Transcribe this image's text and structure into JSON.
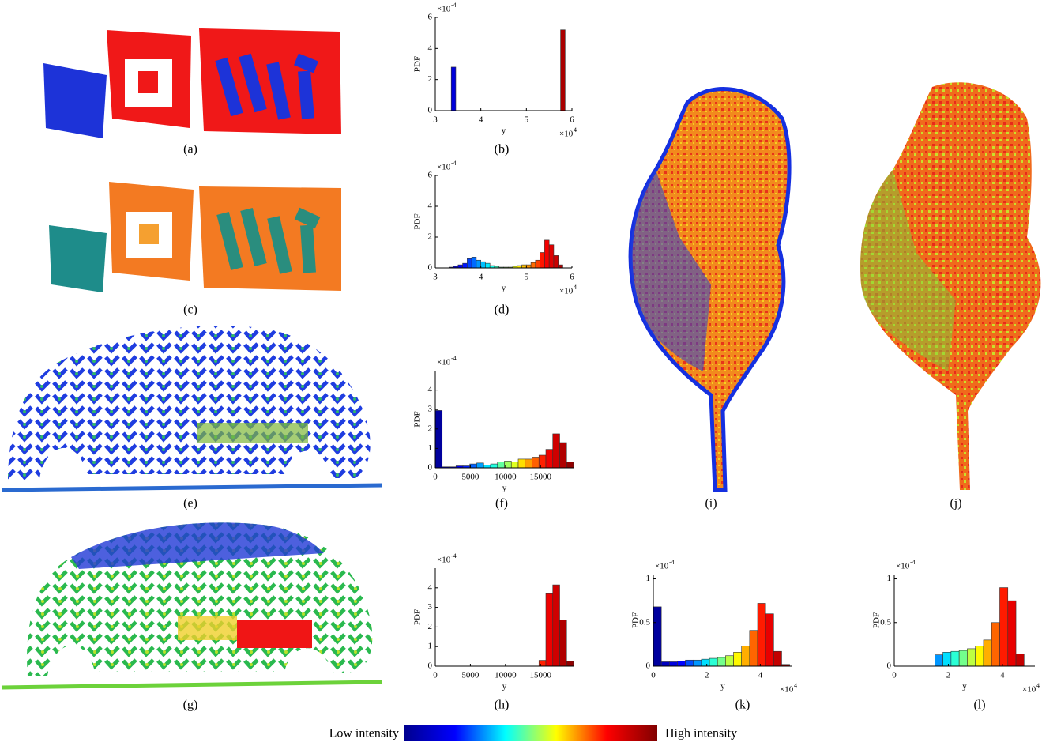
{
  "panels": [
    "(a)",
    "(c)",
    "(e)",
    "(g)",
    "(i)",
    "(j)"
  ],
  "colormap": [
    "#00008f",
    "#0000ff",
    "#00ffff",
    "#ffff00",
    "#ff0000",
    "#800000"
  ],
  "colorbar": {
    "low": "Low intensity",
    "high": "High intensity"
  },
  "chart_data": [
    {
      "type": "histogram",
      "caption": "(b)",
      "ylabel": "PDF",
      "xlabel": "y",
      "y_scale": {
        "base": "×10",
        "exponent": "-4"
      },
      "x_scale": {
        "base": "×10",
        "exponent": "4"
      },
      "xlim": [
        3,
        6
      ],
      "xticks": [
        3,
        4,
        5,
        6
      ],
      "ylim": [
        0,
        6
      ],
      "yticks": [
        0,
        2,
        4,
        6
      ],
      "bins": [
        3.35,
        3.45,
        3.55,
        3.65,
        3.75,
        3.85,
        3.95,
        4.05,
        4.15,
        4.25,
        4.35,
        4.45,
        4.55,
        4.65,
        4.75,
        4.85,
        4.95,
        5.05,
        5.15,
        5.25,
        5.35,
        5.45,
        5.55,
        5.65,
        5.75,
        5.85
      ],
      "values": [
        2.8,
        0,
        0,
        0,
        0,
        0,
        0,
        0,
        0,
        0,
        0,
        0,
        0,
        0,
        0,
        0,
        0,
        0,
        0,
        0,
        0,
        0,
        0,
        0,
        5.2
      ]
    },
    {
      "type": "histogram",
      "caption": "(d)",
      "ylabel": "PDF",
      "xlabel": "y",
      "y_scale": {
        "base": "×10",
        "exponent": "-4"
      },
      "x_scale": {
        "base": "×10",
        "exponent": "4"
      },
      "xlim": [
        3,
        6
      ],
      "xticks": [
        3,
        4,
        5,
        6
      ],
      "ylim": [
        0,
        6
      ],
      "yticks": [
        0,
        2,
        4,
        6
      ],
      "bins": [
        3.3,
        3.4,
        3.5,
        3.6,
        3.7,
        3.8,
        3.9,
        4.0,
        4.1,
        4.2,
        4.3,
        4.4,
        4.5,
        4.6,
        4.7,
        4.8,
        4.9,
        5.0,
        5.1,
        5.2,
        5.3,
        5.4,
        5.5,
        5.6,
        5.7,
        5.8
      ],
      "values": [
        0.05,
        0.1,
        0.2,
        0.3,
        0.6,
        0.7,
        0.5,
        0.4,
        0.3,
        0.15,
        0.1,
        0.05,
        0.05,
        0.05,
        0.1,
        0.15,
        0.2,
        0.2,
        0.35,
        0.5,
        1.0,
        1.8,
        1.5,
        0.8,
        0.2
      ]
    },
    {
      "type": "histogram",
      "caption": "(f)",
      "ylabel": "PDF",
      "xlabel": "y",
      "y_scale": {
        "base": "×10",
        "exponent": "-4"
      },
      "xlim": [
        0,
        19700
      ],
      "xticks": [
        0,
        5000,
        10000,
        15000
      ],
      "ylim": [
        0,
        5
      ],
      "yticks": [
        0,
        1,
        2,
        3,
        4
      ],
      "bins": [
        0,
        985,
        1970,
        2955,
        3940,
        4925,
        5910,
        6895,
        7880,
        8865,
        9850,
        10835,
        11820,
        12805,
        13790,
        14775,
        15760,
        16745,
        17730,
        18715,
        19700
      ],
      "values": [
        2.95,
        0.05,
        0.05,
        0.1,
        0.1,
        0.2,
        0.25,
        0.15,
        0.2,
        0.3,
        0.35,
        0.3,
        0.45,
        0.45,
        0.55,
        0.65,
        0.95,
        1.75,
        1.3,
        0.3
      ]
    },
    {
      "type": "histogram",
      "caption": "(h)",
      "ylabel": "PDF",
      "xlabel": "y",
      "y_scale": {
        "base": "×10",
        "exponent": "-4"
      },
      "xlim": [
        0,
        19700
      ],
      "xticks": [
        0,
        5000,
        10000,
        15000
      ],
      "ylim": [
        0,
        5
      ],
      "yticks": [
        0,
        1,
        2,
        3,
        4
      ],
      "bins": [
        0,
        985,
        1970,
        2955,
        3940,
        4925,
        5910,
        6895,
        7880,
        8865,
        9850,
        10835,
        11820,
        12805,
        13790,
        14775,
        15760,
        16745,
        17730,
        18715,
        19700
      ],
      "values": [
        0,
        0,
        0,
        0,
        0,
        0,
        0,
        0,
        0,
        0,
        0,
        0,
        0,
        0,
        0,
        0.3,
        3.7,
        4.15,
        2.35,
        0.25
      ]
    },
    {
      "type": "histogram",
      "caption": "(k)",
      "ylabel": "PDF",
      "xlabel": "y",
      "y_scale": {
        "base": "×10",
        "exponent": "-4"
      },
      "x_scale": {
        "base": "×10",
        "exponent": "4"
      },
      "xlim": [
        0,
        5.2
      ],
      "xticks": [
        0,
        2,
        4
      ],
      "ylim": [
        0,
        1.05
      ],
      "yticks": [
        0,
        0.5,
        1
      ],
      "bins": [
        0,
        0.3,
        0.6,
        0.9,
        1.2,
        1.5,
        1.8,
        2.1,
        2.4,
        2.7,
        3.0,
        3.3,
        3.6,
        3.9,
        4.2,
        4.5,
        4.8,
        5.1
      ],
      "values": [
        0.68,
        0.05,
        0.05,
        0.06,
        0.07,
        0.07,
        0.08,
        0.09,
        0.1,
        0.12,
        0.16,
        0.23,
        0.41,
        0.72,
        0.6,
        0.17,
        0.02
      ]
    },
    {
      "type": "histogram",
      "caption": "(l)",
      "ylabel": "PDF",
      "xlabel": "y",
      "y_scale": {
        "base": "×10",
        "exponent": "-4"
      },
      "x_scale": {
        "base": "×10",
        "exponent": "4"
      },
      "xlim": [
        0,
        5.2
      ],
      "xticks": [
        0,
        2,
        4
      ],
      "ylim": [
        0,
        1.05
      ],
      "yticks": [
        0,
        0.5,
        1
      ],
      "bins": [
        1.5,
        1.8,
        2.1,
        2.4,
        2.7,
        3.0,
        3.3,
        3.6,
        3.9,
        4.2,
        4.5,
        4.8
      ],
      "values": [
        0.13,
        0.16,
        0.17,
        0.18,
        0.2,
        0.23,
        0.3,
        0.5,
        0.9,
        0.75,
        0.14
      ]
    }
  ]
}
